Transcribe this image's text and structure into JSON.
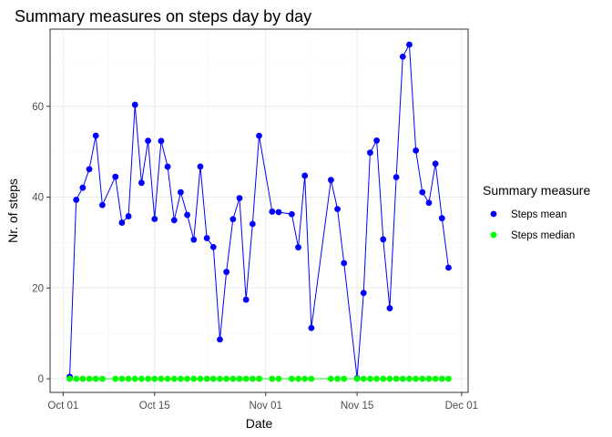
{
  "chart_data": {
    "type": "line",
    "title": "Summary measures on steps day by day",
    "xlabel": "Date",
    "ylabel": "Nr. of steps",
    "x_axis": {
      "type": "date",
      "range": [
        "2012-09-29",
        "2012-12-02"
      ],
      "ticks": [
        {
          "date": "2012-10-01",
          "label": "Oct 01"
        },
        {
          "date": "2012-10-15",
          "label": "Oct 15"
        },
        {
          "date": "2012-11-01",
          "label": "Nov 01"
        },
        {
          "date": "2012-11-15",
          "label": "Nov 15"
        },
        {
          "date": "2012-12-01",
          "label": "Dec 01"
        }
      ]
    },
    "ylim": [
      -3,
      77
    ],
    "yticks": [
      0,
      20,
      40,
      60
    ],
    "grid": true,
    "legend": {
      "title": "Summary measure",
      "position": "right",
      "entries": [
        "Steps mean",
        "Steps median"
      ]
    },
    "series": [
      {
        "name": "Steps mean",
        "color": "#0000ff",
        "points": [
          [
            "2012-10-02",
            0.44
          ],
          [
            "2012-10-03",
            39.42
          ],
          [
            "2012-10-04",
            42.07
          ],
          [
            "2012-10-05",
            46.16
          ],
          [
            "2012-10-06",
            53.54
          ],
          [
            "2012-10-07",
            38.25
          ],
          [
            "2012-10-09",
            44.48
          ],
          [
            "2012-10-10",
            34.38
          ],
          [
            "2012-10-11",
            35.78
          ],
          [
            "2012-10-12",
            60.35
          ],
          [
            "2012-10-13",
            43.15
          ],
          [
            "2012-10-14",
            52.42
          ],
          [
            "2012-10-15",
            35.2
          ],
          [
            "2012-10-16",
            52.38
          ],
          [
            "2012-10-17",
            46.71
          ],
          [
            "2012-10-18",
            34.92
          ],
          [
            "2012-10-19",
            41.07
          ],
          [
            "2012-10-20",
            36.09
          ],
          [
            "2012-10-21",
            30.63
          ],
          [
            "2012-10-22",
            46.74
          ],
          [
            "2012-10-23",
            30.97
          ],
          [
            "2012-10-24",
            29.01
          ],
          [
            "2012-10-25",
            8.65
          ],
          [
            "2012-10-26",
            23.53
          ],
          [
            "2012-10-27",
            35.14
          ],
          [
            "2012-10-28",
            39.78
          ],
          [
            "2012-10-29",
            17.42
          ],
          [
            "2012-10-30",
            34.09
          ],
          [
            "2012-10-31",
            53.52
          ],
          [
            "2012-11-02",
            36.81
          ],
          [
            "2012-11-03",
            36.7
          ],
          [
            "2012-11-05",
            36.25
          ],
          [
            "2012-11-06",
            28.94
          ],
          [
            "2012-11-07",
            44.73
          ],
          [
            "2012-11-08",
            11.18
          ],
          [
            "2012-11-11",
            43.78
          ],
          [
            "2012-11-12",
            37.38
          ],
          [
            "2012-11-13",
            25.47
          ],
          [
            "2012-11-15",
            0.14
          ],
          [
            "2012-11-16",
            18.89
          ],
          [
            "2012-11-17",
            49.79
          ],
          [
            "2012-11-18",
            52.47
          ],
          [
            "2012-11-19",
            30.7
          ],
          [
            "2012-11-20",
            15.53
          ],
          [
            "2012-11-21",
            44.4
          ],
          [
            "2012-11-22",
            70.93
          ],
          [
            "2012-11-23",
            73.59
          ],
          [
            "2012-11-24",
            50.27
          ],
          [
            "2012-11-25",
            41.09
          ],
          [
            "2012-11-26",
            38.76
          ],
          [
            "2012-11-27",
            47.38
          ],
          [
            "2012-11-28",
            35.36
          ],
          [
            "2012-11-29",
            24.47
          ]
        ]
      },
      {
        "name": "Steps median",
        "color": "#00ff00",
        "points": [
          [
            "2012-10-02",
            0
          ],
          [
            "2012-10-03",
            0
          ],
          [
            "2012-10-04",
            0
          ],
          [
            "2012-10-05",
            0
          ],
          [
            "2012-10-06",
            0
          ],
          [
            "2012-10-07",
            0
          ],
          [
            "2012-10-09",
            0
          ],
          [
            "2012-10-10",
            0
          ],
          [
            "2012-10-11",
            0
          ],
          [
            "2012-10-12",
            0
          ],
          [
            "2012-10-13",
            0
          ],
          [
            "2012-10-14",
            0
          ],
          [
            "2012-10-15",
            0
          ],
          [
            "2012-10-16",
            0
          ],
          [
            "2012-10-17",
            0
          ],
          [
            "2012-10-18",
            0
          ],
          [
            "2012-10-19",
            0
          ],
          [
            "2012-10-20",
            0
          ],
          [
            "2012-10-21",
            0
          ],
          [
            "2012-10-22",
            0
          ],
          [
            "2012-10-23",
            0
          ],
          [
            "2012-10-24",
            0
          ],
          [
            "2012-10-25",
            0
          ],
          [
            "2012-10-26",
            0
          ],
          [
            "2012-10-27",
            0
          ],
          [
            "2012-10-28",
            0
          ],
          [
            "2012-10-29",
            0
          ],
          [
            "2012-10-30",
            0
          ],
          [
            "2012-10-31",
            0
          ],
          [
            "2012-11-02",
            0
          ],
          [
            "2012-11-03",
            0
          ],
          [
            "2012-11-05",
            0
          ],
          [
            "2012-11-06",
            0
          ],
          [
            "2012-11-07",
            0
          ],
          [
            "2012-11-08",
            0
          ],
          [
            "2012-11-11",
            0
          ],
          [
            "2012-11-12",
            0
          ],
          [
            "2012-11-13",
            0
          ],
          [
            "2012-11-15",
            0
          ],
          [
            "2012-11-16",
            0
          ],
          [
            "2012-11-17",
            0
          ],
          [
            "2012-11-18",
            0
          ],
          [
            "2012-11-19",
            0
          ],
          [
            "2012-11-20",
            0
          ],
          [
            "2012-11-21",
            0
          ],
          [
            "2012-11-22",
            0
          ],
          [
            "2012-11-23",
            0
          ],
          [
            "2012-11-24",
            0
          ],
          [
            "2012-11-25",
            0
          ],
          [
            "2012-11-26",
            0
          ],
          [
            "2012-11-27",
            0
          ],
          [
            "2012-11-28",
            0
          ],
          [
            "2012-11-29",
            0
          ]
        ]
      }
    ]
  }
}
